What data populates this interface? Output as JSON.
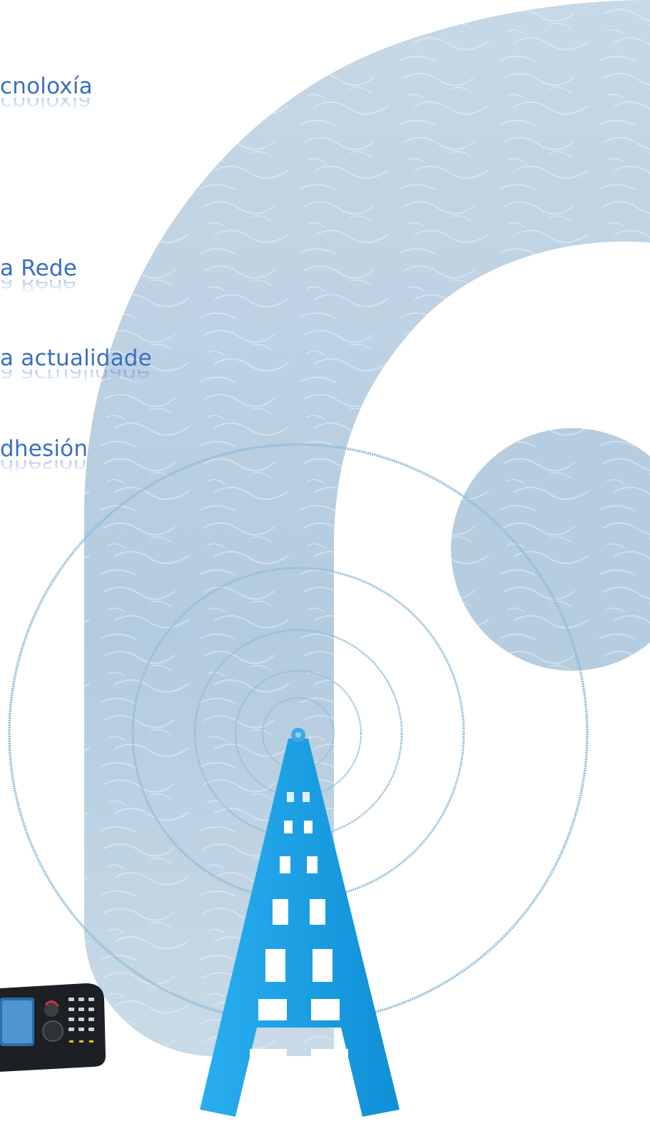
{
  "menu": {
    "items": [
      {
        "label": "cnoloxía"
      },
      {
        "label": "a Rede"
      },
      {
        "label": "a actualidade"
      },
      {
        "label": "dhesión"
      }
    ]
  },
  "colors": {
    "panel": "#bfd3e3",
    "panel_water": "#a9c4d8",
    "waves": "#8db9d6",
    "tower": "#1a9fe3",
    "tower_dark": "#0c7fbd",
    "text": "#3a6fc0"
  },
  "graphics": {
    "background_shape": "stylized-letter-shape",
    "tower_icon": "radio-tower-icon",
    "waves": "signal-waves",
    "device": "handheld-radio-device"
  }
}
